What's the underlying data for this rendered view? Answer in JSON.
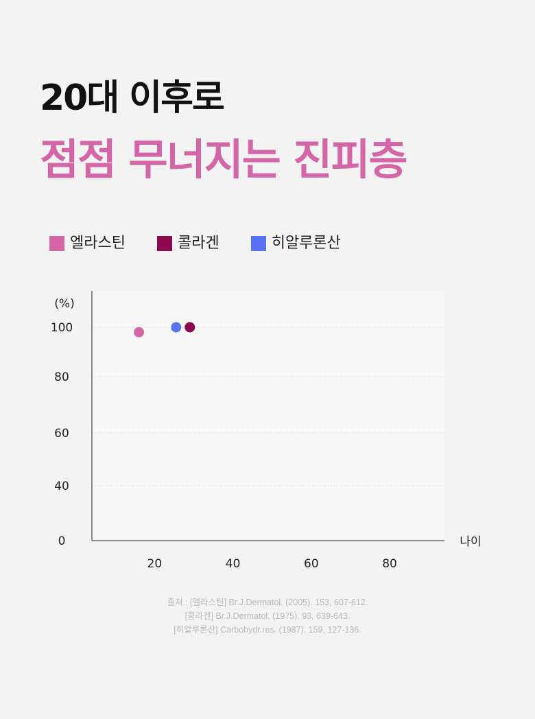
{
  "title": {
    "line1": "20대 이후로",
    "line2": "점점 무너지는 진피층"
  },
  "colors": {
    "elastin": "#d466a8",
    "collagen": "#8b0a52",
    "hyaluronic": "#5b74f5",
    "title_accent": "#d466a8"
  },
  "legend": [
    {
      "label": "엘라스틴",
      "color": "#d466a8"
    },
    {
      "label": "콜라겐",
      "color": "#8b0a52"
    },
    {
      "label": "히알루론산",
      "color": "#5b74f5"
    }
  ],
  "chart_data": {
    "type": "scatter",
    "title": "",
    "xlabel": "나이",
    "ylabel": "(%)",
    "xticks": [
      "20",
      "40",
      "60",
      "80"
    ],
    "yticks": [
      "0",
      "40",
      "60",
      "80",
      "100"
    ],
    "xlim": [
      4,
      94
    ],
    "grid": true,
    "legend_position": "top-left",
    "series": [
      {
        "name": "엘라스틴",
        "color": "#d466a8",
        "points": [
          {
            "x": 16,
            "y": 98
          }
        ]
      },
      {
        "name": "콜라겐",
        "color": "#8b0a52",
        "points": [
          {
            "x": 29,
            "y": 100
          }
        ]
      },
      {
        "name": "히알루론산",
        "color": "#5b74f5",
        "points": [
          {
            "x": 25.5,
            "y": 100
          }
        ]
      }
    ]
  },
  "source": {
    "line1": "출처 : [엘라스틴] Br.J.Dermatol. (2005). 153, 607-612.",
    "line2": "[콜라겐] Br.J.Dermatol. (1975). 93, 639-643.",
    "line3": "[히알루론산] Carbohydr.res. (1987). 159, 127-136."
  }
}
